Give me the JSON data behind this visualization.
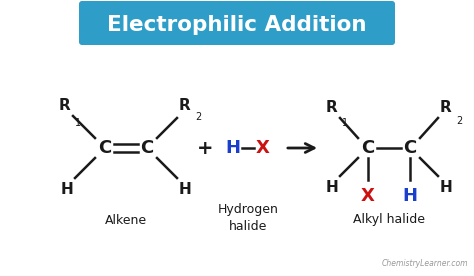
{
  "title": "Electrophilic Addition",
  "title_bg": "#2e9dc8",
  "title_color": "#ffffff",
  "bg_color": "#ffffff",
  "black": "#1a1a1a",
  "blue": "#1a3fcc",
  "red": "#cc1111",
  "label_alkene": "Alkene",
  "label_hx": "Hydrogen\nhalide",
  "label_alkyl": "Alkyl halide",
  "watermark": "ChemistryLearner.com"
}
